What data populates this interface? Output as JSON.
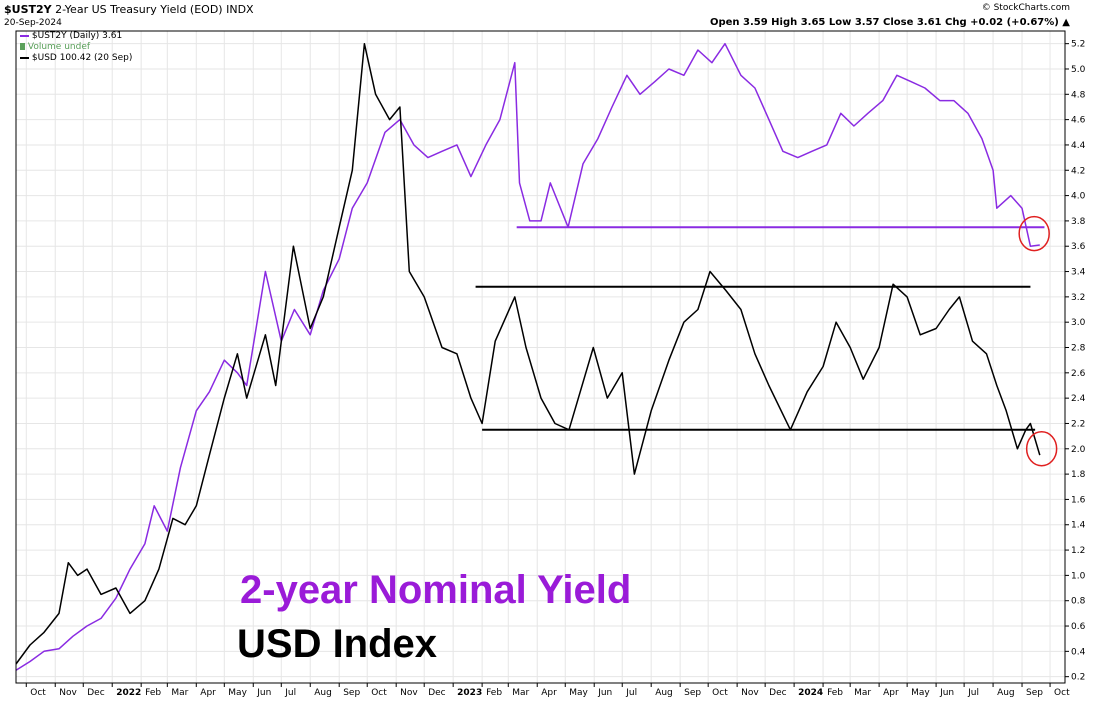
{
  "header": {
    "symbol": "$UST2Y",
    "description": "2-Year US Treasury Yield (EOD)",
    "exchange": "INDX",
    "date": "20-Sep-2024",
    "credit": "© StockCharts.com",
    "ohlc": "Open 3.59  High 3.65  Low 3.57  Close 3.61  Chg +0.02 (+0.67%) ▲"
  },
  "legend": [
    {
      "label": "$UST2Y (Daily) 3.61",
      "color": "#8a2be2"
    },
    {
      "label": "Volume undef",
      "color": "#5aa05a"
    },
    {
      "label": "$USD 100.42 (20 Sep)",
      "color": "#000000"
    }
  ],
  "annotations": {
    "yield_title": "2-year Nominal Yield",
    "usd_title": "USD Index"
  },
  "colors": {
    "yield": "#8a2be2",
    "usd": "#000000",
    "highlight_circle": "#e02020",
    "grid": "#e6e6e6"
  },
  "chart_data": {
    "type": "line",
    "title": "",
    "xlabel": "",
    "ylabel": "",
    "ylim": [
      0.2,
      5.3
    ],
    "grid": true,
    "y_axis_side": "right",
    "y_ticks": [
      "5.2",
      "5.0",
      "4.8",
      "4.6",
      "4.4",
      "4.2",
      "4.0",
      "3.8",
      "3.6",
      "3.4",
      "3.2",
      "3.0",
      "2.8",
      "2.6",
      "2.4",
      "2.2",
      "2.0",
      "1.8",
      "1.6",
      "1.4",
      "1.2",
      "1.0",
      "0.8",
      "0.6",
      "0.4",
      "0.2"
    ],
    "x_ticks": [
      {
        "date": "2021-10-01",
        "label": "Oct"
      },
      {
        "date": "2021-11-01",
        "label": "Nov"
      },
      {
        "date": "2021-12-01",
        "label": "Dec"
      },
      {
        "date": "2022-01-01",
        "label": "2022",
        "bold": true
      },
      {
        "date": "2022-02-01",
        "label": "Feb"
      },
      {
        "date": "2022-03-01",
        "label": "Mar"
      },
      {
        "date": "2022-04-01",
        "label": "Apr"
      },
      {
        "date": "2022-05-01",
        "label": "May"
      },
      {
        "date": "2022-06-01",
        "label": "Jun"
      },
      {
        "date": "2022-07-01",
        "label": "Jul"
      },
      {
        "date": "2022-08-01",
        "label": "Aug"
      },
      {
        "date": "2022-09-01",
        "label": "Sep"
      },
      {
        "date": "2022-10-01",
        "label": "Oct"
      },
      {
        "date": "2022-11-01",
        "label": "Nov"
      },
      {
        "date": "2022-12-01",
        "label": "Dec"
      },
      {
        "date": "2023-01-01",
        "label": "2023",
        "bold": true
      },
      {
        "date": "2023-02-01",
        "label": "Feb"
      },
      {
        "date": "2023-03-01",
        "label": "Mar"
      },
      {
        "date": "2023-04-01",
        "label": "Apr"
      },
      {
        "date": "2023-05-01",
        "label": "May"
      },
      {
        "date": "2023-06-01",
        "label": "Jun"
      },
      {
        "date": "2023-07-01",
        "label": "Jul"
      },
      {
        "date": "2023-08-01",
        "label": "Aug"
      },
      {
        "date": "2023-09-01",
        "label": "Sep"
      },
      {
        "date": "2023-10-01",
        "label": "Oct"
      },
      {
        "date": "2023-11-01",
        "label": "Nov"
      },
      {
        "date": "2023-12-01",
        "label": "Dec"
      },
      {
        "date": "2024-01-01",
        "label": "2024",
        "bold": true
      },
      {
        "date": "2024-02-01",
        "label": "Feb"
      },
      {
        "date": "2024-03-01",
        "label": "Mar"
      },
      {
        "date": "2024-04-01",
        "label": "Apr"
      },
      {
        "date": "2024-05-01",
        "label": "May"
      },
      {
        "date": "2024-06-01",
        "label": "Jun"
      },
      {
        "date": "2024-07-01",
        "label": "Jul"
      },
      {
        "date": "2024-08-01",
        "label": "Aug"
      },
      {
        "date": "2024-09-01",
        "label": "Sep"
      },
      {
        "date": "2024-10-01",
        "label": "Oct"
      }
    ],
    "x_range": [
      "2021-09-20",
      "2024-10-17"
    ],
    "series": [
      {
        "name": "$UST2Y",
        "color": "#8a2be2",
        "points": [
          [
            "2021-09-20",
            0.25
          ],
          [
            "2021-10-05",
            0.32
          ],
          [
            "2021-10-20",
            0.4
          ],
          [
            "2021-11-05",
            0.42
          ],
          [
            "2021-11-20",
            0.52
          ],
          [
            "2021-12-05",
            0.6
          ],
          [
            "2021-12-20",
            0.66
          ],
          [
            "2022-01-05",
            0.82
          ],
          [
            "2022-01-20",
            1.05
          ],
          [
            "2022-02-05",
            1.25
          ],
          [
            "2022-02-15",
            1.55
          ],
          [
            "2022-03-01",
            1.35
          ],
          [
            "2022-03-15",
            1.85
          ],
          [
            "2022-04-01",
            2.3
          ],
          [
            "2022-04-15",
            2.45
          ],
          [
            "2022-05-01",
            2.7
          ],
          [
            "2022-05-15",
            2.6
          ],
          [
            "2022-05-25",
            2.5
          ],
          [
            "2022-06-14",
            3.4
          ],
          [
            "2022-07-01",
            2.85
          ],
          [
            "2022-07-15",
            3.1
          ],
          [
            "2022-08-01",
            2.9
          ],
          [
            "2022-08-15",
            3.25
          ],
          [
            "2022-09-01",
            3.5
          ],
          [
            "2022-09-15",
            3.9
          ],
          [
            "2022-10-01",
            4.1
          ],
          [
            "2022-10-20",
            4.5
          ],
          [
            "2022-11-05",
            4.6
          ],
          [
            "2022-11-20",
            4.4
          ],
          [
            "2022-12-05",
            4.3
          ],
          [
            "2022-12-20",
            4.35
          ],
          [
            "2023-01-05",
            4.4
          ],
          [
            "2023-01-20",
            4.15
          ],
          [
            "2023-02-05",
            4.4
          ],
          [
            "2023-02-20",
            4.6
          ],
          [
            "2023-03-08",
            5.05
          ],
          [
            "2023-03-13",
            4.1
          ],
          [
            "2023-03-24",
            3.8
          ],
          [
            "2023-04-05",
            3.8
          ],
          [
            "2023-04-15",
            4.1
          ],
          [
            "2023-05-04",
            3.75
          ],
          [
            "2023-05-20",
            4.25
          ],
          [
            "2023-06-05",
            4.45
          ],
          [
            "2023-06-20",
            4.7
          ],
          [
            "2023-07-06",
            4.95
          ],
          [
            "2023-07-20",
            4.8
          ],
          [
            "2023-08-05",
            4.9
          ],
          [
            "2023-08-20",
            5.0
          ],
          [
            "2023-09-05",
            4.95
          ],
          [
            "2023-09-20",
            5.15
          ],
          [
            "2023-10-05",
            5.05
          ],
          [
            "2023-10-19",
            5.2
          ],
          [
            "2023-11-05",
            4.95
          ],
          [
            "2023-11-20",
            4.85
          ],
          [
            "2023-12-05",
            4.6
          ],
          [
            "2023-12-20",
            4.35
          ],
          [
            "2024-01-05",
            4.3
          ],
          [
            "2024-01-20",
            4.35
          ],
          [
            "2024-02-05",
            4.4
          ],
          [
            "2024-02-20",
            4.65
          ],
          [
            "2024-03-05",
            4.55
          ],
          [
            "2024-03-20",
            4.65
          ],
          [
            "2024-04-05",
            4.75
          ],
          [
            "2024-04-20",
            4.95
          ],
          [
            "2024-05-05",
            4.9
          ],
          [
            "2024-05-20",
            4.85
          ],
          [
            "2024-06-05",
            4.75
          ],
          [
            "2024-06-20",
            4.75
          ],
          [
            "2024-07-05",
            4.65
          ],
          [
            "2024-07-20",
            4.45
          ],
          [
            "2024-08-01",
            4.2
          ],
          [
            "2024-08-05",
            3.9
          ],
          [
            "2024-08-20",
            4.0
          ],
          [
            "2024-09-01",
            3.9
          ],
          [
            "2024-09-10",
            3.6
          ],
          [
            "2024-09-20",
            3.61
          ]
        ]
      },
      {
        "name": "$USD",
        "color": "#000000",
        "points": [
          [
            "2021-09-20",
            0.3
          ],
          [
            "2021-10-05",
            0.45
          ],
          [
            "2021-10-20",
            0.55
          ],
          [
            "2021-11-05",
            0.7
          ],
          [
            "2021-11-15",
            1.1
          ],
          [
            "2021-11-25",
            1.0
          ],
          [
            "2021-12-05",
            1.05
          ],
          [
            "2021-12-20",
            0.85
          ],
          [
            "2022-01-05",
            0.9
          ],
          [
            "2022-01-20",
            0.7
          ],
          [
            "2022-02-05",
            0.8
          ],
          [
            "2022-02-20",
            1.05
          ],
          [
            "2022-03-07",
            1.45
          ],
          [
            "2022-03-20",
            1.4
          ],
          [
            "2022-04-01",
            1.55
          ],
          [
            "2022-04-15",
            1.95
          ],
          [
            "2022-05-01",
            2.4
          ],
          [
            "2022-05-15",
            2.75
          ],
          [
            "2022-05-25",
            2.4
          ],
          [
            "2022-06-14",
            2.9
          ],
          [
            "2022-06-25",
            2.5
          ],
          [
            "2022-07-14",
            3.6
          ],
          [
            "2022-08-01",
            2.95
          ],
          [
            "2022-08-15",
            3.2
          ],
          [
            "2022-09-01",
            3.75
          ],
          [
            "2022-09-15",
            4.2
          ],
          [
            "2022-09-28",
            5.2
          ],
          [
            "2022-10-10",
            4.8
          ],
          [
            "2022-10-25",
            4.6
          ],
          [
            "2022-11-05",
            4.7
          ],
          [
            "2022-11-15",
            3.4
          ],
          [
            "2022-12-01",
            3.2
          ],
          [
            "2022-12-20",
            2.8
          ],
          [
            "2023-01-05",
            2.75
          ],
          [
            "2023-01-20",
            2.4
          ],
          [
            "2023-02-01",
            2.2
          ],
          [
            "2023-02-15",
            2.85
          ],
          [
            "2023-03-08",
            3.2
          ],
          [
            "2023-03-20",
            2.8
          ],
          [
            "2023-04-05",
            2.4
          ],
          [
            "2023-04-20",
            2.2
          ],
          [
            "2023-05-05",
            2.15
          ],
          [
            "2023-05-31",
            2.8
          ],
          [
            "2023-06-15",
            2.4
          ],
          [
            "2023-07-01",
            2.6
          ],
          [
            "2023-07-14",
            1.8
          ],
          [
            "2023-08-01",
            2.3
          ],
          [
            "2023-08-20",
            2.7
          ],
          [
            "2023-09-05",
            3.0
          ],
          [
            "2023-09-20",
            3.1
          ],
          [
            "2023-10-03",
            3.4
          ],
          [
            "2023-10-20",
            3.25
          ],
          [
            "2023-11-05",
            3.1
          ],
          [
            "2023-11-20",
            2.75
          ],
          [
            "2023-12-05",
            2.5
          ],
          [
            "2023-12-28",
            2.15
          ],
          [
            "2024-01-15",
            2.45
          ],
          [
            "2024-02-01",
            2.65
          ],
          [
            "2024-02-15",
            3.0
          ],
          [
            "2024-03-01",
            2.8
          ],
          [
            "2024-03-15",
            2.55
          ],
          [
            "2024-04-01",
            2.8
          ],
          [
            "2024-04-16",
            3.3
          ],
          [
            "2024-05-01",
            3.2
          ],
          [
            "2024-05-15",
            2.9
          ],
          [
            "2024-06-01",
            2.95
          ],
          [
            "2024-06-15",
            3.1
          ],
          [
            "2024-06-26",
            3.2
          ],
          [
            "2024-07-10",
            2.85
          ],
          [
            "2024-07-25",
            2.75
          ],
          [
            "2024-08-05",
            2.5
          ],
          [
            "2024-08-15",
            2.3
          ],
          [
            "2024-08-27",
            2.0
          ],
          [
            "2024-09-05",
            2.15
          ],
          [
            "2024-09-10",
            2.2
          ],
          [
            "2024-09-20",
            1.95
          ]
        ]
      }
    ],
    "reference_lines": [
      {
        "color": "#8a2be2",
        "y": 3.75,
        "x_start": "2023-03-10",
        "x_end": "2024-09-25"
      },
      {
        "color": "#000000",
        "y": 3.28,
        "x_start": "2023-01-25",
        "x_end": "2024-09-10"
      },
      {
        "color": "#000000",
        "y": 2.15,
        "x_start": "2023-02-01",
        "x_end": "2024-09-15"
      }
    ],
    "highlights": [
      {
        "color": "#e02020",
        "date": "2024-09-14",
        "y": 3.7
      },
      {
        "color": "#e02020",
        "date": "2024-09-22",
        "y": 2.0
      }
    ]
  }
}
